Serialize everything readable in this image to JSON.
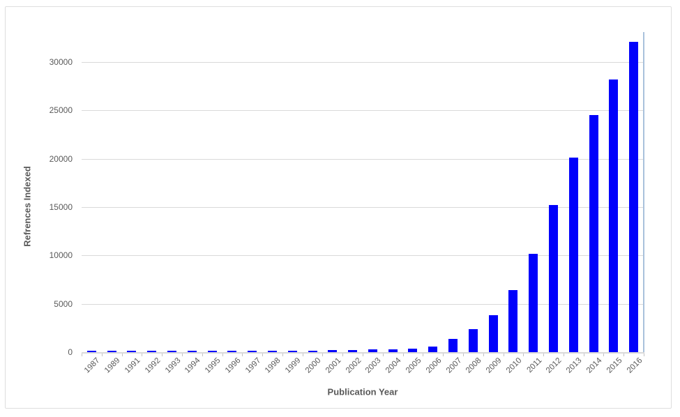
{
  "chart_data": {
    "type": "bar",
    "title": "",
    "xlabel": "Publication Year",
    "ylabel": "Refrences Indexed",
    "categories": [
      "1987",
      "1989",
      "1991",
      "1992",
      "1993",
      "1994",
      "1995",
      "1996",
      "1997",
      "1998",
      "1999",
      "2000",
      "2001",
      "2002",
      "2003",
      "2004",
      "2005",
      "2006",
      "2007",
      "2008",
      "2009",
      "2010",
      "2011",
      "2012",
      "2013",
      "2014",
      "2015",
      "2016"
    ],
    "values": [
      120,
      120,
      120,
      120,
      120,
      130,
      170,
      150,
      150,
      100,
      150,
      170,
      220,
      250,
      290,
      310,
      340,
      600,
      1400,
      2350,
      3800,
      6400,
      10200,
      15200,
      20100,
      24500,
      28200,
      32100
    ],
    "y_ticks": [
      0,
      5000,
      10000,
      15000,
      20000,
      25000,
      30000
    ],
    "ylim": [
      0,
      30000
    ],
    "grid": true,
    "legend_position": "none",
    "colors": {
      "bar": "#0101fb",
      "gridline": "#d9d9d9",
      "axis_line": "#d9d9d9",
      "tick": "#c3c3c3",
      "label": "#595959",
      "plot_right_border": "#a9c1dc",
      "frame_border": "#dedede",
      "background": "#ffffff"
    }
  }
}
